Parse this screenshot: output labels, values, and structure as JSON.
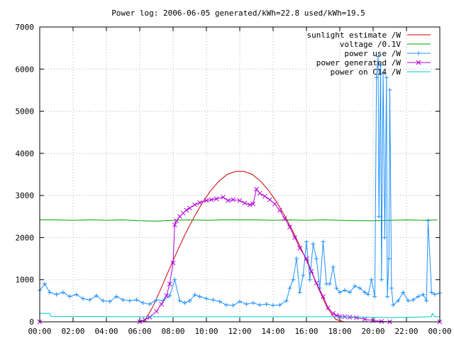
{
  "chart_data": {
    "type": "line",
    "title": "Power log: 2006-06-05 generated/kWh=22.8 used/kWh=19.5",
    "xlabel": "",
    "ylabel": "",
    "xlim": [
      0,
      24
    ],
    "ylim": [
      0,
      7000
    ],
    "x_tick_labels": [
      "00:00",
      "02:00",
      "04:00",
      "06:00",
      "08:00",
      "10:00",
      "12:00",
      "14:00",
      "16:00",
      "18:00",
      "20:00",
      "22:00",
      "00:00"
    ],
    "y_ticks": [
      0,
      1000,
      2000,
      3000,
      4000,
      5000,
      6000,
      7000
    ],
    "grid": true,
    "legend_position": "top-right",
    "series": [
      {
        "name": "sunlight estimate /W",
        "color": "#cc0000",
        "style": "line",
        "x": [
          0,
          6.25,
          6.75,
          7.25,
          7.75,
          8.25,
          8.75,
          9.25,
          9.75,
          10.25,
          10.75,
          11.25,
          11.75,
          12.25,
          12.75,
          13.25,
          13.75,
          14.25,
          14.75,
          15.25,
          15.75,
          16.25,
          16.75,
          17.25,
          17.75,
          18.25,
          24
        ],
        "y": [
          0,
          0,
          330,
          770,
          1230,
          1680,
          2100,
          2480,
          2820,
          3110,
          3340,
          3500,
          3570,
          3570,
          3500,
          3340,
          3110,
          2820,
          2480,
          2100,
          1680,
          1230,
          770,
          330,
          60,
          0,
          0
        ]
      },
      {
        "name": "voltage /0.1V",
        "color": "#00a000",
        "style": "line",
        "x": [
          0,
          1,
          2,
          3,
          4,
          5,
          6,
          7,
          8,
          9,
          10,
          11,
          12,
          13,
          14,
          15,
          16,
          17,
          18,
          19,
          20,
          21,
          22,
          23,
          23.85
        ],
        "y": [
          2420,
          2420,
          2410,
          2420,
          2410,
          2420,
          2400,
          2390,
          2410,
          2420,
          2410,
          2420,
          2420,
          2420,
          2410,
          2420,
          2410,
          2420,
          2410,
          2400,
          2400,
          2410,
          2420,
          2410,
          2420
        ]
      },
      {
        "name": "power use /W",
        "color": "#1e90ff",
        "style": "line-plus",
        "x": [
          0,
          0.3,
          0.6,
          1,
          1.4,
          1.8,
          2.2,
          2.6,
          3,
          3.4,
          3.8,
          4.2,
          4.6,
          5,
          5.4,
          5.8,
          6.2,
          6.6,
          7,
          7.4,
          7.8,
          8.1,
          8.4,
          8.7,
          9,
          9.3,
          9.6,
          10,
          10.4,
          10.8,
          11.2,
          11.6,
          12,
          12.4,
          12.8,
          13.2,
          13.6,
          14,
          14.4,
          14.8,
          15,
          15.2,
          15.4,
          15.6,
          15.8,
          16,
          16.2,
          16.4,
          16.6,
          16.8,
          17,
          17.2,
          17.4,
          17.6,
          17.8,
          18,
          18.3,
          18.6,
          18.9,
          19.2,
          19.5,
          19.7,
          19.9,
          20.1,
          20.2,
          20.3,
          20.35,
          20.45,
          20.5,
          20.6,
          20.7,
          20.8,
          20.85,
          20.95,
          21,
          21.1,
          21.2,
          21.5,
          21.8,
          22.1,
          22.4,
          22.7,
          23,
          23.2,
          23.3,
          23.5,
          23.7,
          24
        ],
        "y": [
          750,
          900,
          700,
          650,
          700,
          600,
          650,
          550,
          520,
          620,
          500,
          480,
          600,
          520,
          500,
          520,
          450,
          420,
          520,
          500,
          620,
          1000,
          500,
          450,
          500,
          640,
          600,
          550,
          520,
          480,
          400,
          390,
          480,
          420,
          450,
          400,
          420,
          390,
          400,
          500,
          800,
          1000,
          1500,
          700,
          1100,
          1900,
          1000,
          1850,
          1500,
          800,
          1900,
          900,
          900,
          1300,
          800,
          700,
          750,
          700,
          850,
          800,
          700,
          650,
          1000,
          600,
          5800,
          6300,
          2500,
          6100,
          1000,
          5900,
          2000,
          5800,
          600,
          1500,
          5500,
          800,
          400,
          500,
          700,
          500,
          520,
          600,
          650,
          500,
          2400,
          700,
          650,
          680
        ]
      },
      {
        "name": "power generated /W",
        "color": "#b000d8",
        "style": "line-x",
        "x": [
          0,
          6,
          6.3,
          6.6,
          7,
          7.3,
          7.6,
          7.8,
          8,
          8.1,
          8.2,
          8.4,
          8.6,
          8.8,
          9,
          9.3,
          9.6,
          10,
          10.3,
          10.6,
          11,
          11.3,
          11.6,
          12,
          12.3,
          12.6,
          12.8,
          13,
          13.2,
          13.5,
          13.8,
          14.1,
          14.4,
          14.7,
          15,
          15.3,
          15.6,
          16,
          16.3,
          16.6,
          17,
          17.3,
          17.6,
          17.8,
          18,
          18.3,
          18.6,
          19,
          19.5,
          20,
          20.5,
          21,
          24
        ],
        "y": [
          0,
          0,
          50,
          110,
          250,
          420,
          620,
          900,
          1400,
          2300,
          2400,
          2500,
          2580,
          2650,
          2700,
          2780,
          2830,
          2880,
          2900,
          2920,
          2960,
          2880,
          2900,
          2880,
          2820,
          2780,
          2800,
          3150,
          3050,
          2980,
          2900,
          2800,
          2650,
          2450,
          2250,
          2000,
          1750,
          1500,
          1200,
          920,
          600,
          330,
          200,
          150,
          130,
          120,
          110,
          100,
          60,
          30,
          10,
          0,
          0
        ]
      },
      {
        "name": "power on C14 /W",
        "color": "#00c8c8",
        "style": "line",
        "x": [
          0,
          0.6,
          0.65,
          6,
          9,
          12,
          15,
          18,
          20,
          21,
          23.5,
          23.55,
          23.7,
          24
        ],
        "y": [
          200,
          200,
          130,
          120,
          120,
          120,
          120,
          120,
          110,
          100,
          120,
          200,
          120,
          120
        ]
      }
    ]
  }
}
